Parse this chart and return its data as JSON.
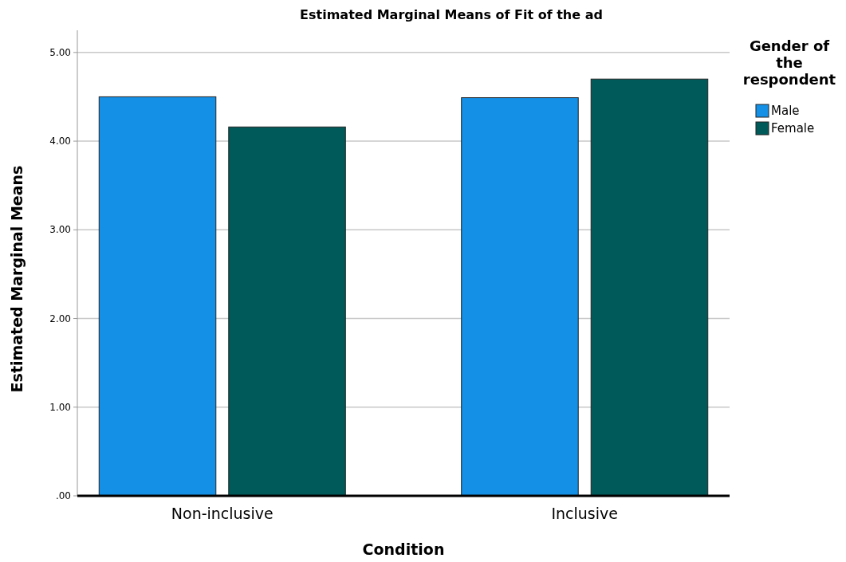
{
  "chart_data": {
    "type": "bar",
    "title": "Estimated Marginal Means of Fit of the ad",
    "xlabel": "Condition",
    "ylabel": "Estimated Marginal Means",
    "legend_title": "Gender of the respondent",
    "categories": [
      "Non-inclusive",
      "Inclusive"
    ],
    "series": [
      {
        "name": "Male",
        "color": "#1490e6",
        "values": [
          4.5,
          4.49
        ]
      },
      {
        "name": "Female",
        "color": "#005a5a",
        "values": [
          4.16,
          4.7
        ]
      }
    ],
    "ylim": [
      0,
      5.25
    ],
    "yticks": [
      {
        "value": 0,
        "label": ".00"
      },
      {
        "value": 1,
        "label": "1.00"
      },
      {
        "value": 2,
        "label": "2.00"
      },
      {
        "value": 3,
        "label": "3.00"
      },
      {
        "value": 4,
        "label": "4.00"
      },
      {
        "value": 5,
        "label": "5.00"
      }
    ],
    "grid": "y",
    "legend": "right"
  }
}
